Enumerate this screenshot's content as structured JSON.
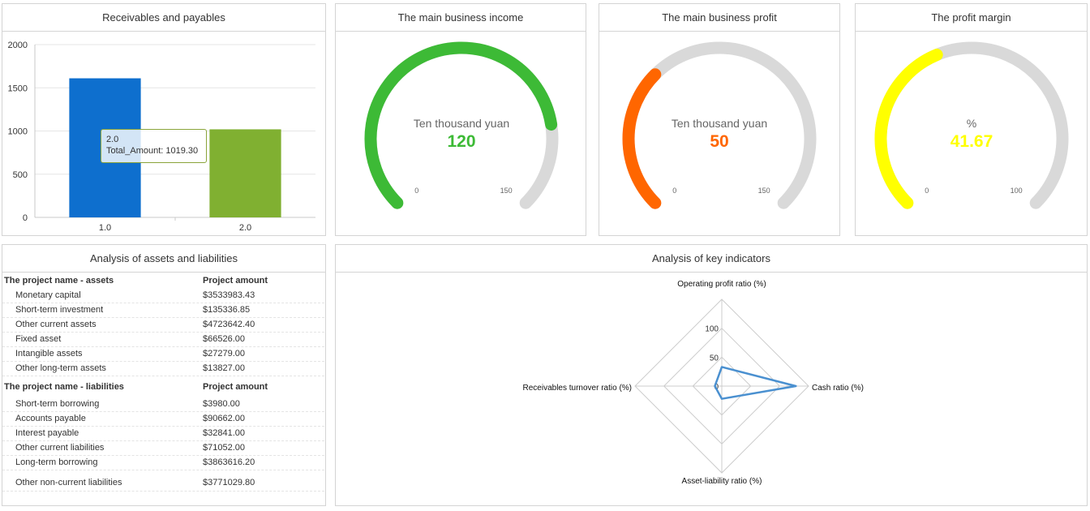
{
  "panels": {
    "receivables": {
      "title": "Receivables and payables"
    },
    "income": {
      "title": "The main business income",
      "unit": "Ten thousand yuan",
      "value": "120",
      "min_label": "0",
      "max_label": "150",
      "value_num": 120,
      "max": 150,
      "color": "#3dba36"
    },
    "profit": {
      "title": "The main business profit",
      "unit": "Ten thousand yuan",
      "value": "50",
      "min_label": "0",
      "max_label": "150",
      "value_num": 50,
      "max": 150,
      "color": "#ff6600"
    },
    "margin": {
      "title": "The profit margin",
      "unit": "%",
      "value": "41.67",
      "min_label": "0",
      "max_label": "100",
      "value_num": 41.67,
      "max": 100,
      "color": "#ffff00"
    },
    "assets": {
      "title": "Analysis of assets and liabilities"
    },
    "indicators": {
      "title": "Analysis of key indicators"
    }
  },
  "tooltip": {
    "line1": "2.0",
    "line2": "Total_Amount: 1019.30"
  },
  "table": {
    "assets_header": {
      "name": "The project name - assets",
      "amount": "Project amount"
    },
    "assets": [
      {
        "name": "Monetary capital",
        "amount": "$3533983.43"
      },
      {
        "name": "Short-term investment",
        "amount": "$135336.85"
      },
      {
        "name": "Other current assets",
        "amount": "$4723642.40"
      },
      {
        "name": "Fixed asset",
        "amount": "$66526.00"
      },
      {
        "name": "Intangible assets",
        "amount": "$27279.00"
      },
      {
        "name": "Other long-term assets",
        "amount": "$13827.00"
      }
    ],
    "liabilities_header": {
      "name": "The project name - liabilities",
      "amount": "Project amount"
    },
    "liabilities": [
      {
        "name": "Short-term borrowing",
        "amount": "$3980.00"
      },
      {
        "name": "Accounts payable",
        "amount": "$90662.00"
      },
      {
        "name": "Interest payable",
        "amount": "$32841.00"
      },
      {
        "name": "Other current liabilities",
        "amount": "$71052.00"
      },
      {
        "name": "Long-term borrowing",
        "amount": "$3863616.20"
      },
      {
        "name": "Other non-current liabilities",
        "amount": "$3771029.80"
      }
    ]
  },
  "chart_data": [
    {
      "type": "bar",
      "title": "Receivables and payables",
      "categories": [
        "1.0",
        "2.0"
      ],
      "values": [
        1610,
        1019.3
      ],
      "colors": [
        "#0e6fce",
        "#80b031"
      ],
      "ylim": [
        0,
        2000
      ],
      "yticks": [
        "0",
        "500",
        "1000",
        "1500",
        "2000"
      ],
      "grid": true
    },
    {
      "type": "radar",
      "title": "Analysis of key indicators",
      "axes": [
        "Operating profit ratio (%)",
        "Cash ratio (%)",
        "Asset-liability ratio (%)",
        "Receivables turnover ratio (%)"
      ],
      "values": [
        33,
        128,
        22,
        12
      ],
      "ticks": [
        "0",
        "50",
        "100"
      ],
      "rmax": 150,
      "color": "#4a90d0"
    }
  ]
}
